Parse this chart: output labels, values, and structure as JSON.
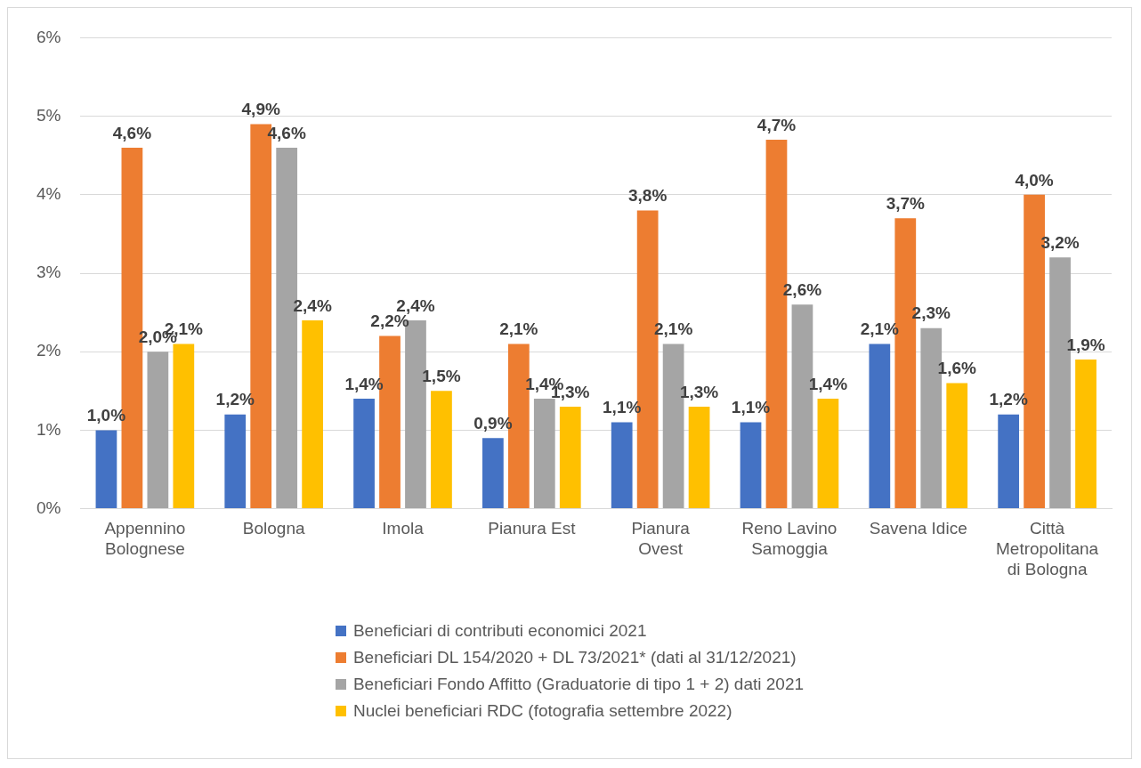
{
  "chart_data": {
    "type": "bar",
    "categories": [
      "Appennino Bolognese",
      "Bologna",
      "Imola",
      "Pianura Est",
      "Pianura Ovest",
      "Reno Lavino Samoggia",
      "Savena Idice",
      "Città Metropolitana di Bologna"
    ],
    "series": [
      {
        "name": "Beneficiari di contributi economici 2021",
        "color": "#4472c4",
        "values": [
          1.0,
          1.2,
          1.4,
          0.9,
          1.1,
          1.1,
          2.1,
          1.2
        ],
        "value_labels": [
          "1,0%",
          "1,2%",
          "1,4%",
          "0,9%",
          "1,1%",
          "1,1%",
          "2,1%",
          "1,2%"
        ]
      },
      {
        "name": "Beneficiari DL 154/2020 + DL 73/2021* (dati al 31/12/2021)",
        "color": "#ed7d31",
        "values": [
          4.6,
          4.9,
          2.2,
          2.1,
          3.8,
          4.7,
          3.7,
          4.0
        ],
        "value_labels": [
          "4,6%",
          "4,9%",
          "2,2%",
          "2,1%",
          "3,8%",
          "4,7%",
          "3,7%",
          "4,0%"
        ]
      },
      {
        "name": "Beneficiari Fondo Affitto (Graduatorie di tipo 1 + 2) dati 2021",
        "color": "#a5a5a5",
        "values": [
          2.0,
          4.6,
          2.4,
          1.4,
          2.1,
          2.6,
          2.3,
          3.2
        ],
        "value_labels": [
          "2,0%",
          "4,6%",
          "2,4%",
          "1,4%",
          "2,1%",
          "2,6%",
          "2,3%",
          "3,2%"
        ]
      },
      {
        "name": "Nuclei beneficiari RDC (fotografia settembre 2022)",
        "color": "#ffc000",
        "values": [
          2.1,
          2.4,
          1.5,
          1.3,
          1.3,
          1.4,
          1.6,
          1.9
        ],
        "value_labels": [
          "2,1%",
          "2,4%",
          "1,5%",
          "1,3%",
          "1,3%",
          "1,4%",
          "1,6%",
          "1,9%"
        ]
      }
    ],
    "ylim": [
      0,
      6
    ],
    "yticks": [
      {
        "value": 0,
        "label": "0%"
      },
      {
        "value": 1,
        "label": "1%"
      },
      {
        "value": 2,
        "label": "2%"
      },
      {
        "value": 3,
        "label": "3%"
      },
      {
        "value": 4,
        "label": "4%"
      },
      {
        "value": 5,
        "label": "5%"
      },
      {
        "value": 6,
        "label": "6%"
      }
    ],
    "grid": "y",
    "legend": "bottom"
  }
}
